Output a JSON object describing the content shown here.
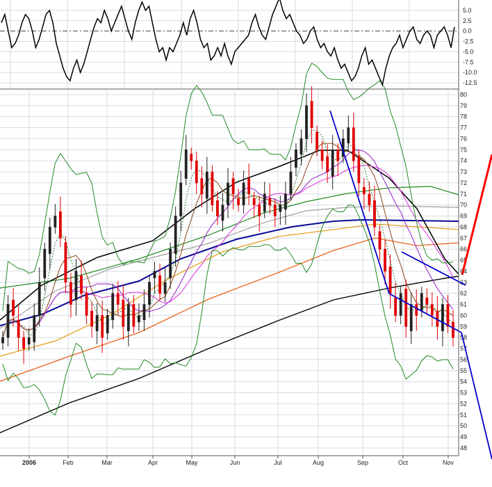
{
  "chart_data": [
    {
      "type": "line",
      "panel": "oscillator",
      "y_ticks": [
        "5.0",
        "2.5",
        "0.0",
        "-2.5",
        "-5.0",
        "-7.5",
        "-10.0",
        "-12.5"
      ],
      "y_tick_values": [
        5,
        2.5,
        0,
        -2.5,
        -5,
        -7.5,
        -10,
        -12.5
      ],
      "ylim": [
        -14,
        7.5
      ],
      "zero_line": "dashed",
      "series": [
        {
          "color": "#000000",
          "values": [
            2,
            4,
            0,
            -4,
            -3,
            -1,
            2,
            4,
            3,
            0,
            -4,
            -2,
            1,
            4,
            5,
            2,
            -3,
            -6,
            -9,
            -11,
            -12,
            -9,
            -7,
            -10,
            -8,
            -5,
            -2,
            1,
            3,
            2,
            5,
            3,
            0,
            2,
            4,
            6,
            3,
            0,
            -2,
            2,
            5,
            7,
            5,
            6,
            2,
            -2,
            -5,
            -4,
            -7,
            -4,
            -5,
            -3,
            -1,
            2,
            -1,
            3,
            5,
            2,
            -2,
            -4,
            -3,
            -7,
            -6,
            -4,
            -6,
            -3,
            -6,
            -8,
            -5,
            -4,
            -3,
            -2,
            -1,
            2,
            4,
            1,
            -1,
            -2,
            1,
            4,
            6,
            8,
            5,
            3,
            4,
            2,
            0,
            -1,
            -3,
            -2,
            0,
            1,
            -2,
            -4,
            -3,
            -5,
            -6,
            -4,
            -7,
            -9,
            -8,
            -10,
            -12,
            -11,
            -9,
            -6,
            -4,
            -8,
            -7,
            -9,
            -11,
            -13,
            -9,
            -6,
            -4,
            -3,
            -1,
            -4,
            -2,
            0,
            1,
            -2,
            -3,
            -1,
            0,
            -1,
            -4,
            -1,
            0,
            1,
            -1,
            -4,
            1
          ]
        }
      ]
    },
    {
      "type": "candlestick",
      "panel": "price",
      "x_ticks": [
        "2006",
        "Feb",
        "Mar",
        "Apr",
        "May",
        "Jun",
        "Jul",
        "Aug",
        "Sep",
        "Oct",
        "Nov"
      ],
      "y_ticks": [
        "80",
        "79",
        "78",
        "77",
        "76",
        "75",
        "74",
        "73",
        "72",
        "71",
        "70",
        "69",
        "68",
        "67",
        "66",
        "65",
        "64",
        "63",
        "62",
        "61",
        "60",
        "59",
        "58",
        "57",
        "56",
        "55",
        "54",
        "53",
        "52",
        "51",
        "50",
        "49",
        "48"
      ],
      "ylim": [
        47.3,
        80.5
      ],
      "grid": true,
      "closes": [
        58,
        61,
        60,
        58,
        57,
        58,
        60,
        63,
        66,
        68,
        69,
        67,
        63,
        61,
        64,
        62,
        60,
        59,
        60,
        58,
        60,
        62,
        61,
        59,
        61,
        59,
        60,
        61,
        63,
        64,
        62,
        63,
        66,
        69,
        72,
        75,
        74,
        72,
        71,
        73,
        70,
        69,
        70,
        72,
        71,
        70,
        72,
        71,
        70,
        69,
        71,
        70,
        69,
        70,
        71,
        73,
        75,
        76,
        79,
        77,
        75,
        74,
        73,
        75,
        74,
        76,
        77,
        74,
        72,
        71,
        70,
        68,
        66,
        64,
        62,
        60,
        62,
        59,
        61,
        60,
        62,
        61,
        60,
        59,
        61,
        59,
        58
      ],
      "indicators": [
        {
          "label": "moving-average-short-dotted",
          "color": "#2e7d32"
        },
        {
          "label": "moving-average-brown",
          "color": "#8b4513"
        },
        {
          "label": "moving-average-violet",
          "color": "#9932cc"
        },
        {
          "label": "moving-average-magenta",
          "color": "#e040e0"
        },
        {
          "label": "moving-average-black",
          "color": "#000000"
        },
        {
          "label": "moving-average-gray",
          "color": "#a0a0a0"
        },
        {
          "label": "moving-average-green",
          "color": "#228b22"
        },
        {
          "label": "moving-average-navy",
          "color": "#0a0a96"
        },
        {
          "label": "moving-average-gold",
          "color": "#e6a020"
        },
        {
          "label": "moving-average-orange",
          "color": "#e8641e"
        },
        {
          "label": "moving-average-long-black",
          "color": "#000000"
        },
        {
          "label": "bollinger-bands",
          "color": "#228b22"
        }
      ],
      "annotations": [
        {
          "label": "downtrend-line",
          "color": "#0000cc",
          "points": [
            [
              475,
              159
            ],
            [
              560,
              422
            ]
          ]
        },
        {
          "label": "channel-upper",
          "color": "#0000cc",
          "points": [
            [
              578,
              362
            ],
            [
              670,
              410
            ]
          ]
        },
        {
          "label": "channel-lower",
          "color": "#0000cc",
          "points": [
            [
              560,
              422
            ],
            [
              664,
              478
            ]
          ]
        },
        {
          "label": "projection-down",
          "color": "#0000cc",
          "points": [
            [
              664,
              478
            ],
            [
              708,
              660
            ]
          ]
        },
        {
          "label": "projection-up",
          "color": "#ff0000",
          "points": [
            [
              665,
              395
            ],
            [
              708,
              222
            ]
          ]
        }
      ],
      "colors": {
        "up_candle": "#222222",
        "down_candle": "#e00000"
      }
    }
  ]
}
